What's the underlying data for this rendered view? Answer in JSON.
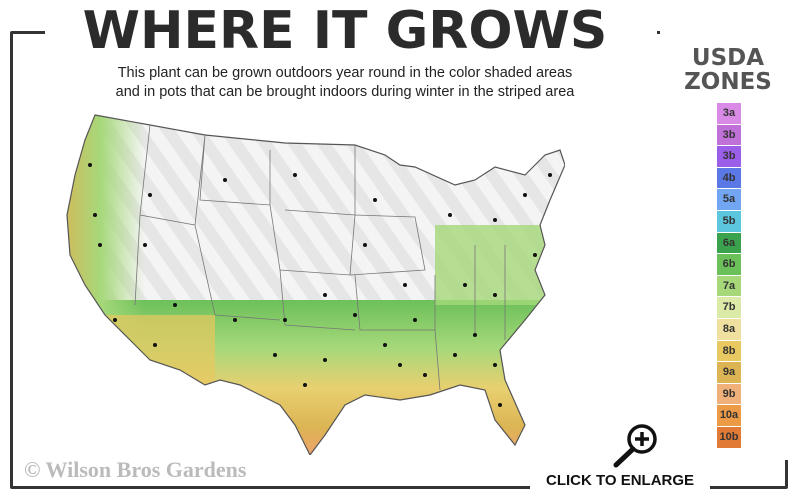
{
  "header": {
    "title": "WHERE IT GROWS",
    "subtitle_line1": "This plant can be grown outdoors year round in the color shaded areas",
    "subtitle_line2": "and in pots that can be brought indoors during winter in the striped area"
  },
  "legend": {
    "title_line1": "USDA",
    "title_line2": "ZONES",
    "zones": [
      {
        "label": "3a",
        "color": "#d98ae6"
      },
      {
        "label": "3b",
        "color": "#c071d8"
      },
      {
        "label": "3b",
        "color": "#9a5ee8"
      },
      {
        "label": "4b",
        "color": "#5a78e6"
      },
      {
        "label": "5a",
        "color": "#72a6f2"
      },
      {
        "label": "5b",
        "color": "#5cc6de"
      },
      {
        "label": "6a",
        "color": "#3aa14c"
      },
      {
        "label": "6b",
        "color": "#6cc05a"
      },
      {
        "label": "7a",
        "color": "#a6d87a"
      },
      {
        "label": "7b",
        "color": "#dceaa8"
      },
      {
        "label": "8a",
        "color": "#efe0a0"
      },
      {
        "label": "8b",
        "color": "#e8c860"
      },
      {
        "label": "9a",
        "color": "#dcb454"
      },
      {
        "label": "9b",
        "color": "#f0b07a"
      },
      {
        "label": "10a",
        "color": "#ec9a46"
      },
      {
        "label": "10b",
        "color": "#e07a34"
      }
    ]
  },
  "watermark": "© Wilson Bros Gardens",
  "enlarge": {
    "label": "CLICK TO ENLARGE",
    "icon": "zoom-in-magnifier-icon"
  }
}
